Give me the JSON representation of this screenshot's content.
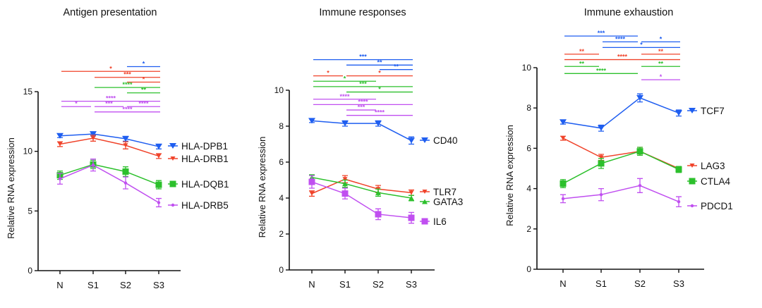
{
  "colors": {
    "blue": "#1f5ef0",
    "red": "#f0432a",
    "green": "#2cc02c",
    "purple": "#c04ff0"
  },
  "chart_data": [
    {
      "type": "line",
      "title": "Antigen presentation",
      "ylabel": "Relative RNA expression",
      "categories": [
        "N",
        "S1",
        "S2",
        "S3"
      ],
      "ylim": [
        0,
        15
      ],
      "yticks": [
        0,
        5,
        10,
        15
      ],
      "legend": "right",
      "series": [
        {
          "name": "HLA-DPB1",
          "color": "blue",
          "marker": "triangle-down",
          "values": [
            11.3,
            11.45,
            11.05,
            10.4
          ],
          "errors": [
            0.15,
            0.15,
            0.2,
            0.2
          ]
        },
        {
          "name": "HLA-DRB1",
          "color": "red",
          "marker": "small-triangle-down",
          "values": [
            10.6,
            11.1,
            10.5,
            9.6
          ],
          "errors": [
            0.2,
            0.25,
            0.3,
            0.2
          ]
        },
        {
          "name": "HLA-DQB1",
          "color": "green",
          "marker": "square",
          "values": [
            8.0,
            8.9,
            8.3,
            7.2
          ],
          "errors": [
            0.35,
            0.35,
            0.4,
            0.35
          ]
        },
        {
          "name": "HLA-DRB5",
          "color": "purple",
          "marker": "dot",
          "values": [
            7.7,
            8.85,
            7.35,
            5.7
          ],
          "errors": [
            0.45,
            0.5,
            0.5,
            0.35
          ]
        }
      ],
      "significance": [
        {
          "from": 2,
          "to": 3,
          "level": 17.1,
          "label": "*",
          "color": "blue"
        },
        {
          "from": 0,
          "to": 3,
          "level": 16.7,
          "label": "*",
          "color": "red"
        },
        {
          "from": 1,
          "to": 3,
          "level": 16.2,
          "label": "***",
          "color": "red"
        },
        {
          "from": 2,
          "to": 3,
          "level": 15.8,
          "label": "*",
          "color": "red"
        },
        {
          "from": 1,
          "to": 3,
          "level": 15.35,
          "label": "****",
          "color": "green"
        },
        {
          "from": 2,
          "to": 3,
          "level": 14.9,
          "label": "**",
          "color": "green"
        },
        {
          "from": 0,
          "to": 3,
          "level": 14.2,
          "label": "****",
          "color": "purple"
        },
        {
          "from": 0,
          "to": 1,
          "level": 13.75,
          "label": "*",
          "color": "purple"
        },
        {
          "from": 1,
          "to": 2,
          "level": 13.75,
          "label": "***",
          "color": "purple"
        },
        {
          "from": 2,
          "to": 3,
          "level": 13.75,
          "label": "****",
          "color": "purple"
        },
        {
          "from": 1,
          "to": 3,
          "level": 13.3,
          "label": "****",
          "color": "purple"
        }
      ]
    },
    {
      "type": "line",
      "title": "Immune responses",
      "ylabel": "Relative RNA expression",
      "categories": [
        "N",
        "S1",
        "S2",
        "S3"
      ],
      "ylim": [
        0,
        10
      ],
      "yticks": [
        0,
        2,
        4,
        6,
        8,
        10
      ],
      "legend": "right",
      "series": [
        {
          "name": "CD40",
          "color": "blue",
          "marker": "triangle-down",
          "values": [
            8.3,
            8.15,
            8.15,
            7.2
          ],
          "errors": [
            0.1,
            0.15,
            0.15,
            0.2
          ]
        },
        {
          "name": "TLR7",
          "color": "red",
          "marker": "small-triangle-down",
          "values": [
            4.25,
            5.05,
            4.5,
            4.3
          ],
          "errors": [
            0.15,
            0.2,
            0.2,
            0.15
          ]
        },
        {
          "name": "GATA3",
          "color": "green",
          "marker": "triangle-up",
          "values": [
            5.15,
            4.8,
            4.3,
            4.0
          ],
          "errors": [
            0.15,
            0.2,
            0.2,
            0.15
          ]
        },
        {
          "name": "IL6",
          "color": "purple",
          "marker": "square",
          "values": [
            4.9,
            4.25,
            3.1,
            2.9
          ],
          "errors": [
            0.35,
            0.3,
            0.3,
            0.3
          ]
        }
      ],
      "significance": [
        {
          "from": 0,
          "to": 3,
          "level": 11.7,
          "label": "***",
          "color": "blue"
        },
        {
          "from": 1,
          "to": 3,
          "level": 11.4,
          "label": "**",
          "color": "blue"
        },
        {
          "from": 2,
          "to": 3,
          "level": 11.15,
          "label": "**",
          "color": "blue"
        },
        {
          "from": 0,
          "to": 1,
          "level": 10.8,
          "label": "*",
          "color": "red"
        },
        {
          "from": 1,
          "to": 3,
          "level": 10.8,
          "label": "*",
          "color": "red"
        },
        {
          "from": 0,
          "to": 2,
          "level": 10.5,
          "label": "*",
          "color": "green"
        },
        {
          "from": 0,
          "to": 3,
          "level": 10.2,
          "label": "***",
          "color": "green"
        },
        {
          "from": 1,
          "to": 3,
          "level": 9.9,
          "label": "*",
          "color": "green"
        },
        {
          "from": 0,
          "to": 2,
          "level": 9.5,
          "label": "****",
          "color": "purple"
        },
        {
          "from": 0,
          "to": 3,
          "level": 9.2,
          "label": "****",
          "color": "purple"
        },
        {
          "from": 1,
          "to": 2,
          "level": 8.9,
          "label": "***",
          "color": "purple"
        },
        {
          "from": 1,
          "to": 3,
          "level": 8.6,
          "label": "****",
          "color": "purple"
        }
      ]
    },
    {
      "type": "line",
      "title": "Immune exhaustion",
      "ylabel": "Relative RNA expression",
      "categories": [
        "N",
        "S1",
        "S2",
        "S3"
      ],
      "ylim": [
        0,
        10
      ],
      "yticks": [
        0,
        2,
        4,
        6,
        8,
        10
      ],
      "legend": "right",
      "series": [
        {
          "name": "TCF7",
          "color": "blue",
          "marker": "triangle-down",
          "values": [
            7.3,
            7.0,
            8.5,
            7.75
          ],
          "errors": [
            0.1,
            0.15,
            0.2,
            0.15
          ]
        },
        {
          "name": "LAG3",
          "color": "red",
          "marker": "small-triangle-down",
          "values": [
            6.5,
            5.55,
            5.85,
            5.0
          ],
          "errors": [
            0.1,
            0.15,
            0.2,
            0.1
          ]
        },
        {
          "name": "CTLA4",
          "color": "green",
          "marker": "square",
          "values": [
            4.25,
            5.25,
            5.85,
            4.95
          ],
          "errors": [
            0.2,
            0.25,
            0.2,
            0.15
          ]
        },
        {
          "name": "PDCD1",
          "color": "purple",
          "marker": "dot",
          "values": [
            3.5,
            3.7,
            4.15,
            3.35
          ],
          "errors": [
            0.2,
            0.3,
            0.35,
            0.25
          ]
        }
      ],
      "significance": [
        {
          "from": 0,
          "to": 2,
          "level": 11.57,
          "label": "***",
          "color": "blue"
        },
        {
          "from": 1,
          "to": 2,
          "level": 11.28,
          "label": "****",
          "color": "blue"
        },
        {
          "from": 2,
          "to": 3,
          "level": 11.28,
          "label": "*",
          "color": "blue"
        },
        {
          "from": 1,
          "to": 3,
          "level": 11.0,
          "label": "*",
          "color": "blue"
        },
        {
          "from": 0,
          "to": 1,
          "level": 10.67,
          "label": "**",
          "color": "red"
        },
        {
          "from": 2,
          "to": 3,
          "level": 10.67,
          "label": "**",
          "color": "red"
        },
        {
          "from": 0,
          "to": 3,
          "level": 10.4,
          "label": "****",
          "color": "red"
        },
        {
          "from": 0,
          "to": 1,
          "level": 10.06,
          "label": "**",
          "color": "green"
        },
        {
          "from": 2,
          "to": 3,
          "level": 10.06,
          "label": "**",
          "color": "green"
        },
        {
          "from": 0,
          "to": 2,
          "level": 9.71,
          "label": "****",
          "color": "green"
        },
        {
          "from": 2,
          "to": 3,
          "level": 9.4,
          "label": "*",
          "color": "purple"
        }
      ]
    }
  ]
}
